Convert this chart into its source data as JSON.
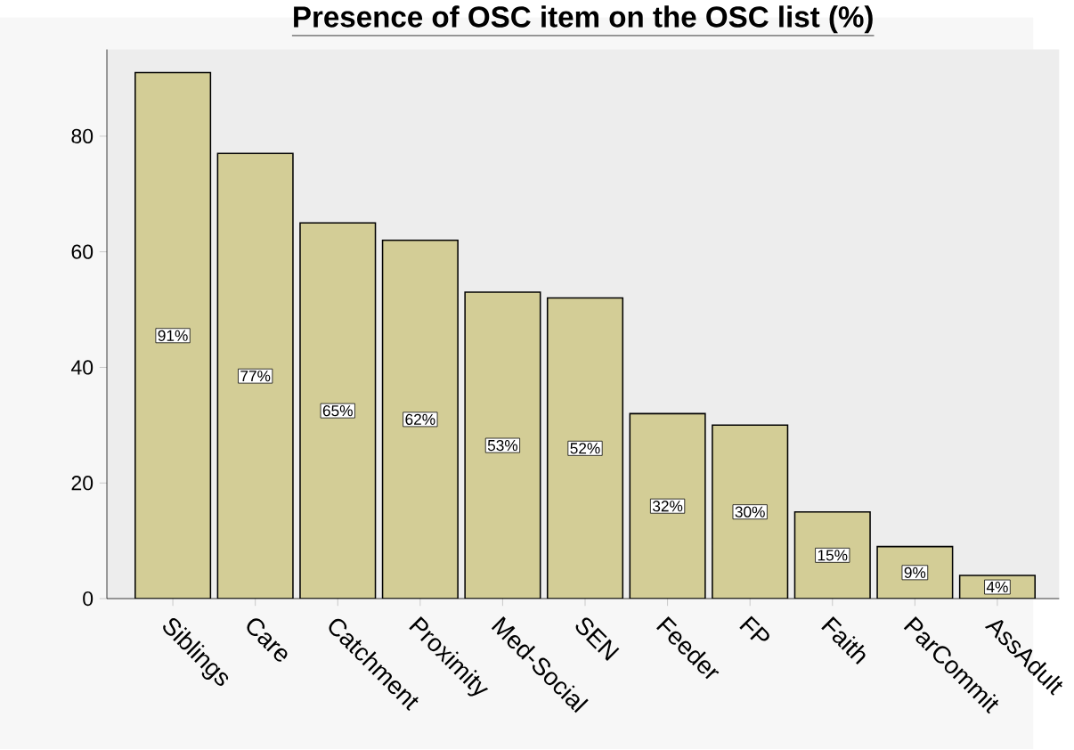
{
  "chart_data": {
    "type": "bar",
    "title": "Presence of OSC item on the OSC list (%)",
    "categories": [
      "Siblings",
      "Care",
      "Catchment",
      "Proximity",
      "Med-Social",
      "SEN",
      "Feeder",
      "FP",
      "Faith",
      "ParCommit",
      "AssAdult"
    ],
    "values": [
      91,
      77,
      65,
      62,
      53,
      52,
      32,
      30,
      15,
      9,
      4
    ],
    "value_labels": [
      "91%",
      "77%",
      "65%",
      "62%",
      "53%",
      "52%",
      "32%",
      "30%",
      "15%",
      "9%",
      "4%"
    ],
    "color": "#d3cd96",
    "ylim": [
      0,
      95
    ],
    "yticks": [
      0,
      20,
      40,
      60,
      80
    ],
    "grid": false
  }
}
